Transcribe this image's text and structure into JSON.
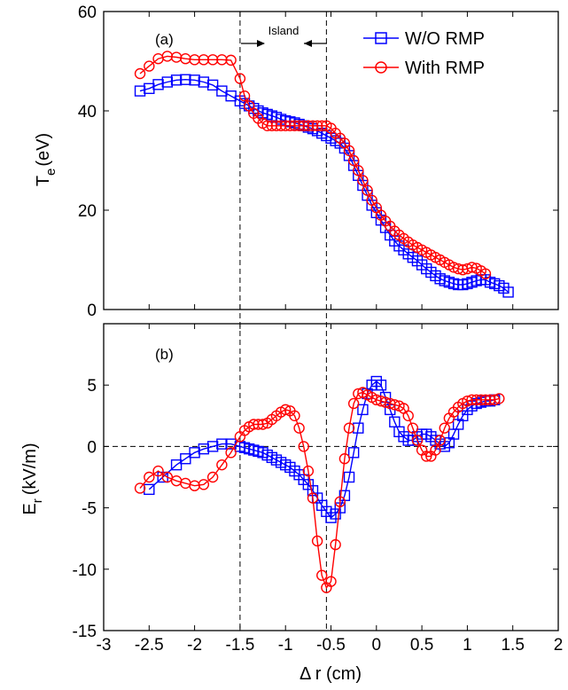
{
  "chart_data": [
    {
      "panel": "(a)",
      "type": "line",
      "xlim": [
        -3,
        2
      ],
      "ylim": [
        0,
        60
      ],
      "yticks": [
        0,
        20,
        40,
        60
      ],
      "ylabel_main": "T",
      "ylabel_sub": "e",
      "ylabel_unit": "(eV)",
      "annotation": "Island",
      "legend_position": "top-right",
      "legend": [
        "W/O RMP",
        "With RMP"
      ],
      "series": [
        {
          "name": "W/O RMP",
          "color": "#0000ff",
          "marker": "square",
          "x": [
            -2.6,
            -2.5,
            -2.4,
            -2.3,
            -2.2,
            -2.1,
            -2.0,
            -1.9,
            -1.8,
            -1.7,
            -1.6,
            -1.5,
            -1.45,
            -1.4,
            -1.35,
            -1.3,
            -1.25,
            -1.2,
            -1.15,
            -1.1,
            -1.05,
            -1.0,
            -0.95,
            -0.9,
            -0.85,
            -0.8,
            -0.75,
            -0.7,
            -0.65,
            -0.6,
            -0.55,
            -0.5,
            -0.45,
            -0.4,
            -0.35,
            -0.3,
            -0.25,
            -0.2,
            -0.15,
            -0.1,
            -0.05,
            0.0,
            0.05,
            0.1,
            0.15,
            0.2,
            0.25,
            0.3,
            0.35,
            0.4,
            0.45,
            0.5,
            0.55,
            0.6,
            0.65,
            0.7,
            0.75,
            0.8,
            0.85,
            0.9,
            0.95,
            1.0,
            1.05,
            1.1,
            1.15,
            1.2,
            1.25,
            1.3,
            1.35,
            1.4,
            1.45
          ],
          "y": [
            44,
            44.5,
            45.3,
            45.8,
            46.2,
            46.3,
            46.2,
            45.8,
            45.2,
            44,
            43,
            42,
            41.5,
            41,
            40.5,
            40,
            39.6,
            39.3,
            39,
            38.7,
            38.3,
            38,
            37.8,
            37.6,
            37.3,
            37,
            36.7,
            36.4,
            36,
            35.5,
            35,
            34.5,
            34,
            33.5,
            32.5,
            31,
            29,
            27,
            25,
            23,
            21,
            19.5,
            18,
            16.5,
            15,
            13.8,
            12.8,
            12,
            11.2,
            10.5,
            9.8,
            9,
            8.2,
            7.5,
            6.8,
            6.2,
            5.8,
            5.5,
            5.2,
            5,
            5,
            5.2,
            5.5,
            5.8,
            6,
            6,
            5.5,
            5.2,
            4.8,
            4.3,
            3.5
          ]
        },
        {
          "name": "With RMP",
          "color": "#ff0000",
          "marker": "circle",
          "x": [
            -2.6,
            -2.5,
            -2.4,
            -2.3,
            -2.2,
            -2.1,
            -2.0,
            -1.9,
            -1.8,
            -1.7,
            -1.6,
            -1.5,
            -1.45,
            -1.4,
            -1.35,
            -1.3,
            -1.25,
            -1.2,
            -1.15,
            -1.1,
            -1.05,
            -1.0,
            -0.95,
            -0.9,
            -0.85,
            -0.8,
            -0.75,
            -0.7,
            -0.65,
            -0.6,
            -0.55,
            -0.5,
            -0.45,
            -0.4,
            -0.35,
            -0.3,
            -0.25,
            -0.2,
            -0.15,
            -0.1,
            -0.05,
            0.0,
            0.05,
            0.1,
            0.15,
            0.2,
            0.25,
            0.3,
            0.35,
            0.4,
            0.45,
            0.5,
            0.55,
            0.6,
            0.65,
            0.7,
            0.75,
            0.8,
            0.85,
            0.9,
            0.95,
            1.0,
            1.05,
            1.1,
            1.15,
            1.2
          ],
          "y": [
            47.5,
            49,
            50.5,
            51,
            50.8,
            50.5,
            50.3,
            50.3,
            50.3,
            50.3,
            50.2,
            46.5,
            43,
            41,
            39.5,
            38.5,
            37.5,
            37,
            37,
            37,
            37,
            37,
            37,
            37,
            37,
            37,
            37,
            37,
            37,
            37,
            37,
            36.5,
            35.5,
            34.5,
            33.5,
            32,
            30,
            28,
            26,
            24,
            22,
            20.5,
            19,
            17.8,
            16.8,
            15.8,
            15,
            14.3,
            13.6,
            13,
            12.5,
            12,
            11.5,
            11,
            10.5,
            10,
            9.5,
            9,
            8.5,
            8.2,
            8,
            8.2,
            8.5,
            8.3,
            7.8,
            7.2
          ]
        }
      ]
    },
    {
      "panel": "(b)",
      "type": "line",
      "xlim": [
        -3,
        2
      ],
      "ylim": [
        -15,
        10
      ],
      "yticks": [
        -15,
        -10,
        -5,
        0,
        5
      ],
      "ylabel_main": "E",
      "ylabel_sub": "r",
      "ylabel_unit": "(kV/m)",
      "xticks": [
        -3,
        -2.5,
        -2,
        -1.5,
        -1,
        -0.5,
        0,
        0.5,
        1,
        1.5,
        2
      ],
      "xlabel": "Δ r (cm)",
      "series": [
        {
          "name": "W/O RMP",
          "color": "#0000ff",
          "marker": "square",
          "x": [
            -2.5,
            -2.35,
            -2.2,
            -2.1,
            -2.0,
            -1.9,
            -1.8,
            -1.7,
            -1.6,
            -1.5,
            -1.45,
            -1.4,
            -1.35,
            -1.3,
            -1.25,
            -1.2,
            -1.15,
            -1.1,
            -1.05,
            -1.0,
            -0.95,
            -0.9,
            -0.85,
            -0.8,
            -0.75,
            -0.7,
            -0.65,
            -0.6,
            -0.55,
            -0.5,
            -0.45,
            -0.4,
            -0.35,
            -0.3,
            -0.25,
            -0.2,
            -0.15,
            -0.1,
            -0.05,
            0.0,
            0.05,
            0.1,
            0.15,
            0.2,
            0.25,
            0.3,
            0.35,
            0.4,
            0.45,
            0.5,
            0.55,
            0.6,
            0.65,
            0.7,
            0.75,
            0.8,
            0.85,
            0.9,
            0.95,
            1.0,
            1.05,
            1.1,
            1.15,
            1.2,
            1.25,
            1.3
          ],
          "y": [
            -3.5,
            -2.5,
            -1.5,
            -1.0,
            -0.5,
            -0.2,
            0.0,
            0.2,
            0.2,
            0.0,
            -0.1,
            -0.2,
            -0.3,
            -0.4,
            -0.5,
            -0.7,
            -0.9,
            -1.1,
            -1.3,
            -1.5,
            -1.7,
            -2.0,
            -2.3,
            -2.7,
            -3.1,
            -3.6,
            -4.2,
            -4.8,
            -5.3,
            -5.8,
            -5.5,
            -5.0,
            -4.0,
            -2.5,
            -0.5,
            1.5,
            3.0,
            4.3,
            5.0,
            5.3,
            5.0,
            4.0,
            3.0,
            2.0,
            1.2,
            0.8,
            0.5,
            0.5,
            0.8,
            1.0,
            1.0,
            0.8,
            0.5,
            0.2,
            0.0,
            0.3,
            1.0,
            1.8,
            2.5,
            3.0,
            3.3,
            3.5,
            3.6,
            3.7,
            3.7,
            3.8
          ]
        },
        {
          "name": "With RMP",
          "color": "#ff0000",
          "marker": "circle",
          "x": [
            -2.6,
            -2.5,
            -2.4,
            -2.3,
            -2.2,
            -2.1,
            -2.0,
            -1.9,
            -1.8,
            -1.7,
            -1.6,
            -1.5,
            -1.45,
            -1.4,
            -1.35,
            -1.3,
            -1.25,
            -1.2,
            -1.15,
            -1.1,
            -1.05,
            -1.0,
            -0.95,
            -0.9,
            -0.85,
            -0.8,
            -0.75,
            -0.7,
            -0.65,
            -0.6,
            -0.55,
            -0.5,
            -0.45,
            -0.4,
            -0.35,
            -0.3,
            -0.25,
            -0.2,
            -0.15,
            -0.1,
            -0.05,
            0.0,
            0.05,
            0.1,
            0.15,
            0.2,
            0.25,
            0.3,
            0.35,
            0.4,
            0.45,
            0.5,
            0.55,
            0.6,
            0.65,
            0.7,
            0.75,
            0.8,
            0.85,
            0.9,
            0.95,
            1.0,
            1.05,
            1.1,
            1.15,
            1.2,
            1.25,
            1.3,
            1.35
          ],
          "y": [
            -3.4,
            -2.5,
            -2.0,
            -2.5,
            -2.8,
            -3.0,
            -3.2,
            -3.1,
            -2.5,
            -1.5,
            -0.5,
            0.8,
            1.3,
            1.6,
            1.8,
            1.8,
            1.8,
            1.9,
            2.2,
            2.5,
            2.8,
            3.0,
            2.9,
            2.5,
            1.5,
            0.0,
            -2.0,
            -4.2,
            -7.7,
            -10.5,
            -11.5,
            -11.0,
            -8.0,
            -4.5,
            -1.0,
            1.5,
            3.5,
            4.3,
            4.4,
            4.2,
            4.0,
            3.8,
            3.7,
            3.6,
            3.5,
            3.4,
            3.3,
            3.1,
            2.5,
            1.5,
            0.5,
            -0.3,
            -0.8,
            -0.8,
            -0.3,
            0.5,
            1.5,
            2.3,
            2.8,
            3.2,
            3.5,
            3.7,
            3.8,
            3.8,
            3.8,
            3.8,
            3.8,
            3.8,
            3.9
          ]
        }
      ]
    }
  ]
}
